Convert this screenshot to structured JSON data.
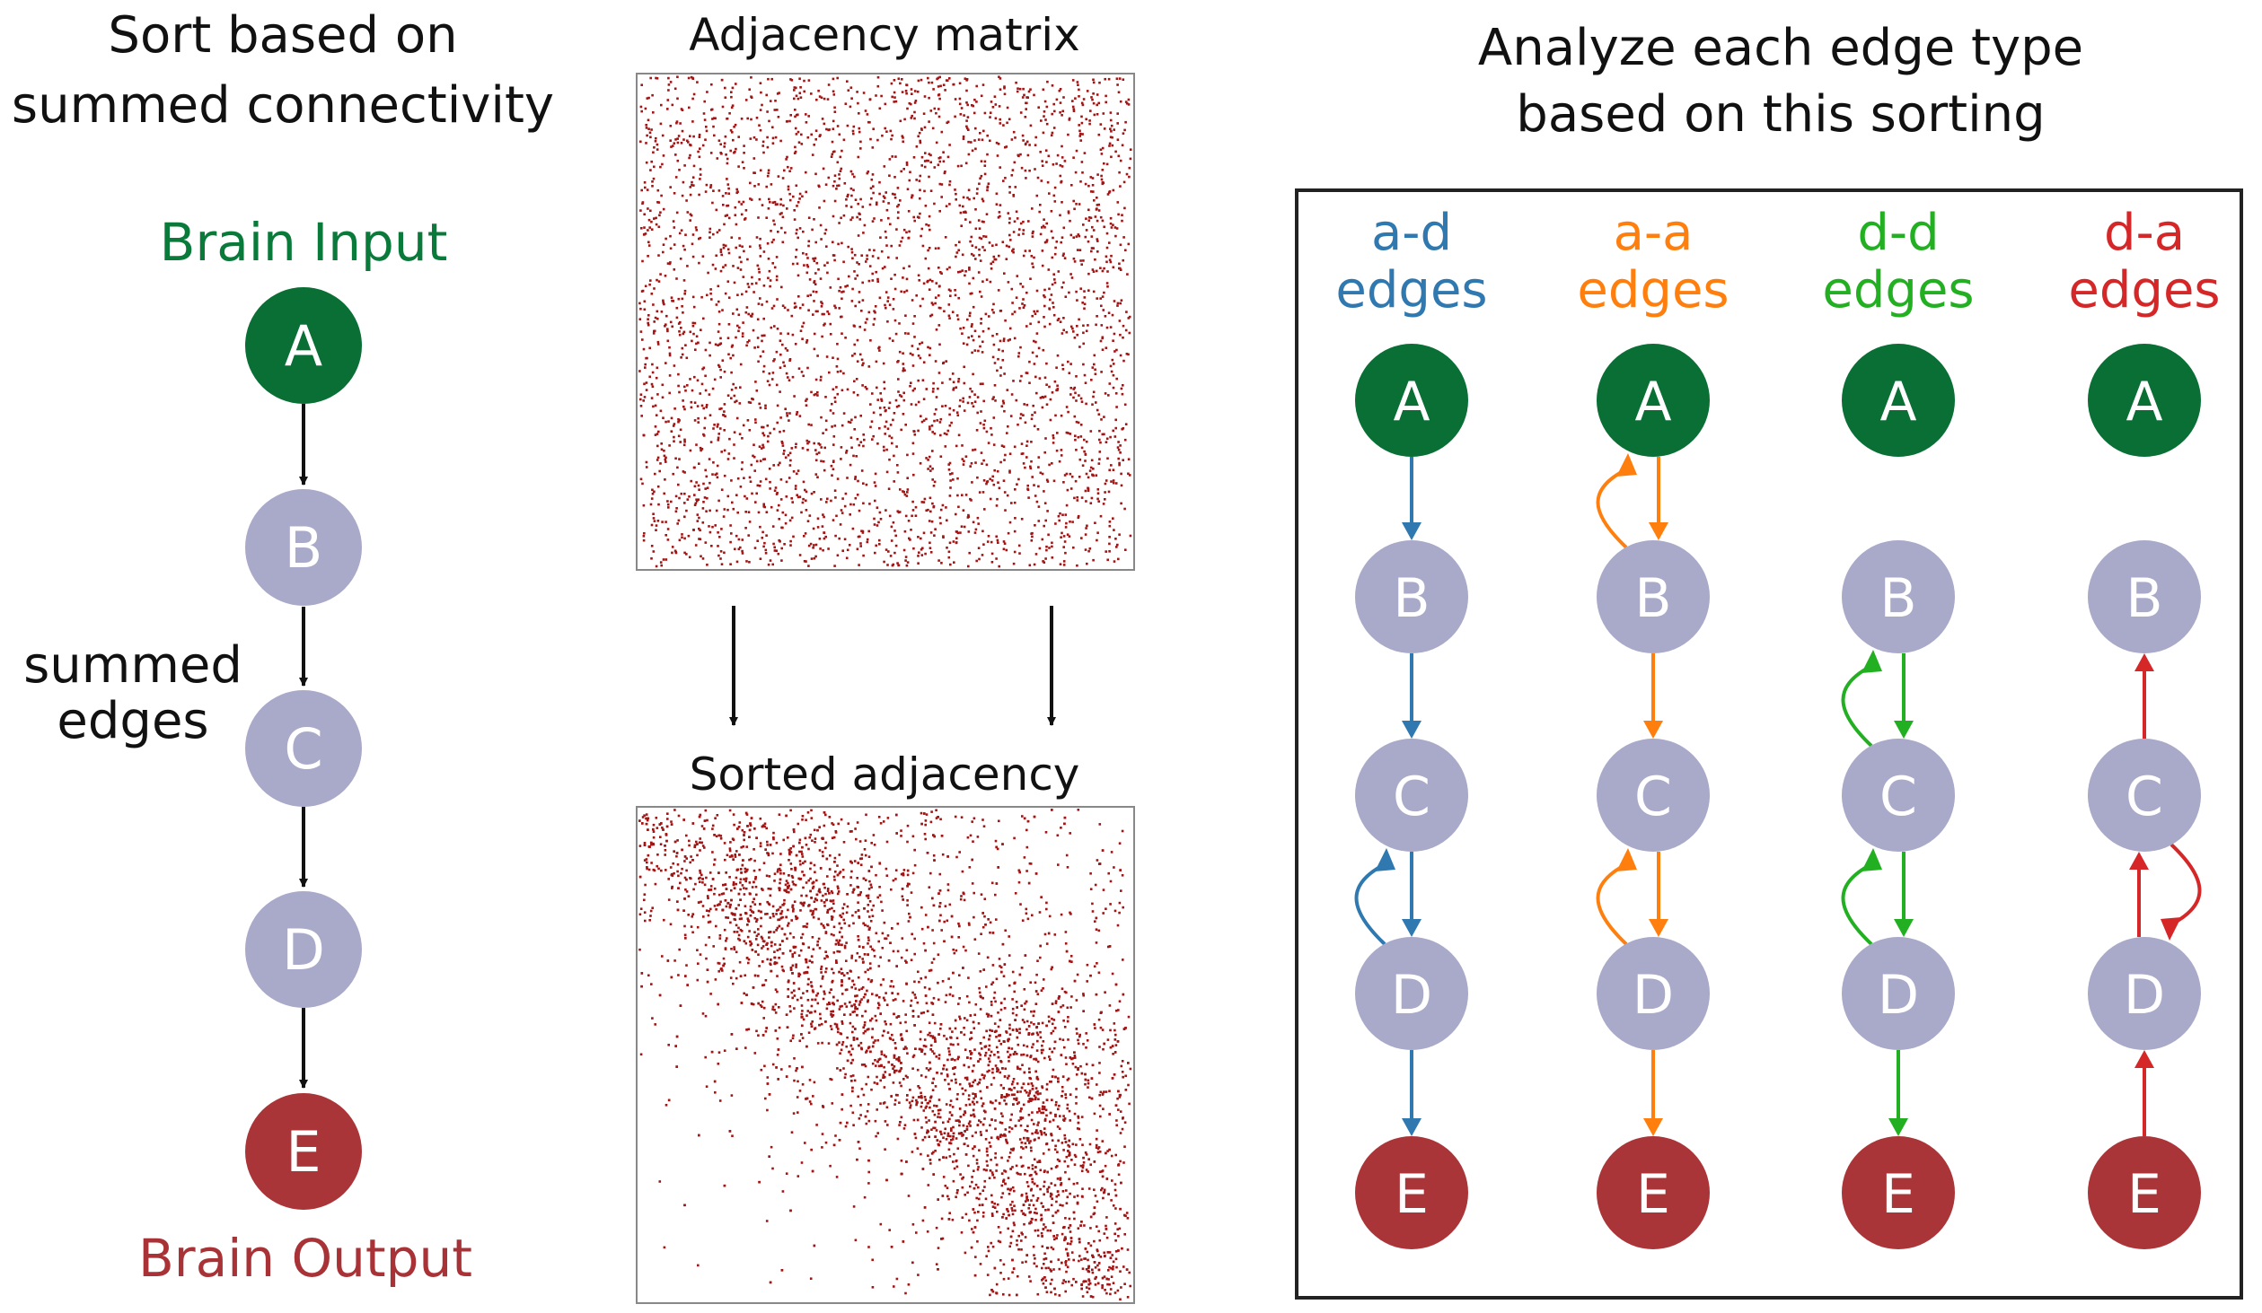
{
  "left_panel": {
    "title_line1": "Sort based on",
    "title_line2": "summed connectivity",
    "input_label": "Brain Input",
    "output_label": "Brain Output",
    "side_label_line1": "summed",
    "side_label_line2": "edges",
    "nodes": [
      "A",
      "B",
      "C",
      "D",
      "E"
    ]
  },
  "middle_panel": {
    "top_title": "Adjacency matrix",
    "bottom_title": "Sorted adjacency"
  },
  "right_panel": {
    "title_line1": "Analyze each edge type",
    "title_line2": "based on this sorting",
    "columns": [
      {
        "line1": "a-d",
        "line2": "edges",
        "color": "#2f78b0"
      },
      {
        "line1": "a-a",
        "line2": "edges",
        "color": "#ff7f0e"
      },
      {
        "line1": "d-d",
        "line2": "edges",
        "color": "#22b022"
      },
      {
        "line1": "d-a",
        "line2": "edges",
        "color": "#d62728"
      }
    ],
    "nodes": [
      "A",
      "B",
      "C",
      "D",
      "E"
    ]
  },
  "colors": {
    "input_node": "#0a6f35",
    "middle_node": "#a9a9c9",
    "output_node": "#aa3538",
    "input_text": "#0a7a3a",
    "output_text": "#a83236",
    "dots": "#a31515"
  }
}
